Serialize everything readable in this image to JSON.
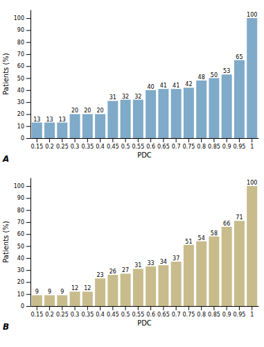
{
  "chart_data": [
    {
      "type": "bar",
      "title": "A",
      "categories": [
        "0.15",
        "0.2",
        "0.25",
        "0.3",
        "0.35",
        "0.4",
        "0.45",
        "0.5",
        "0.55",
        "0.6",
        "0.65",
        "0.7",
        "0.75",
        "0.8",
        "0.85",
        "0.9",
        "0.95",
        "1"
      ],
      "values": [
        13,
        13,
        13,
        20,
        20,
        20,
        31,
        32,
        32,
        40,
        41,
        41,
        42,
        48,
        50,
        53,
        65,
        100
      ],
      "color": "#7faac9",
      "xlabel": "PDC",
      "ylabel": "Patients (%)",
      "ylim": [
        0,
        107
      ],
      "yticks": [
        0,
        10,
        20,
        30,
        40,
        50,
        60,
        70,
        80,
        90,
        100
      ],
      "data_labels": true,
      "grid": false
    },
    {
      "type": "bar",
      "title": "B",
      "categories": [
        "0.15",
        "0.2",
        "0.25",
        "0.3",
        "0.35",
        "0.4",
        "0.45",
        "0.5",
        "0.55",
        "0.6",
        "0.65",
        "0.7",
        "0.75",
        "0.8",
        "0.85",
        "0.9",
        "0.95",
        "1"
      ],
      "values": [
        9,
        9,
        9,
        12,
        12,
        23,
        26,
        27,
        31,
        33,
        34,
        37,
        51,
        54,
        58,
        66,
        71,
        100
      ],
      "color": "#c8bc8c",
      "xlabel": "PDC",
      "ylabel": "Patients (%)",
      "ylim": [
        0,
        107
      ],
      "yticks": [
        0,
        10,
        20,
        30,
        40,
        50,
        60,
        70,
        80,
        90,
        100
      ],
      "data_labels": true,
      "grid": false
    }
  ]
}
